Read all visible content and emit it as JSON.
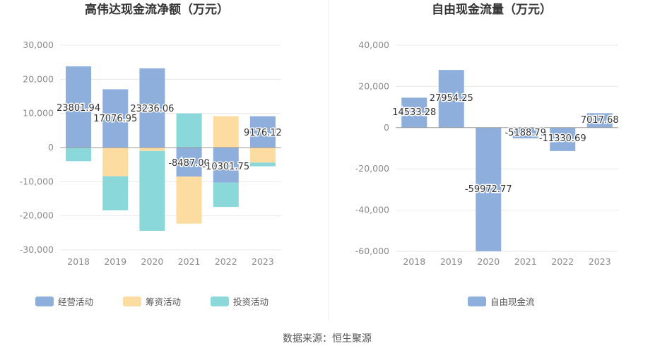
{
  "chart_data": [
    {
      "type": "bar",
      "stacked": true,
      "title": "高伟达现金流净额（万元）",
      "categories": [
        "2018",
        "2019",
        "2020",
        "2021",
        "2022",
        "2023"
      ],
      "ylim": [
        -30000,
        30000
      ],
      "yticks": [
        -30000,
        -20000,
        -10000,
        0,
        10000,
        20000,
        30000
      ],
      "ytick_labels": [
        "-30,000",
        "-20,000",
        "-10,000",
        "0",
        "10,000",
        "20,000",
        "30,000"
      ],
      "grid": true,
      "legend_position": "bottom",
      "series": [
        {
          "name": "经营活动",
          "color": "#8eaedb",
          "values": [
            23801.94,
            17076.95,
            23236.06,
            -8487.0,
            -10301.75,
            9176.12
          ]
        },
        {
          "name": "筹资活动",
          "color": "#fddca2",
          "values": [
            0,
            -8400,
            -1000,
            -13800,
            9200,
            -4400
          ]
        },
        {
          "name": "投资活动",
          "color": "#8ad8da",
          "values": [
            -4000,
            -10000,
            -23400,
            10000,
            -7100,
            -1100
          ]
        }
      ],
      "data_labels": [
        "23801.94",
        "17076.95",
        "23236.06",
        "-8487.00",
        "-10301.75",
        "9176.12"
      ]
    },
    {
      "type": "bar",
      "title": "自由现金流量（万元）",
      "categories": [
        "2018",
        "2019",
        "2020",
        "2021",
        "2022",
        "2023"
      ],
      "ylim": [
        -60000,
        40000
      ],
      "yticks": [
        -60000,
        -40000,
        -20000,
        0,
        20000,
        40000
      ],
      "ytick_labels": [
        "-60,000",
        "-40,000",
        "-20,000",
        "0",
        "20,000",
        "40,000"
      ],
      "grid": true,
      "legend_position": "bottom",
      "series": [
        {
          "name": "自由现金流",
          "color": "#8eaedb",
          "values": [
            14533.28,
            27954.25,
            -59972.77,
            -5188.79,
            -11330.69,
            7017.68
          ]
        }
      ],
      "data_labels": [
        "14533.28",
        "27954.25",
        "-59972.77",
        "-5188.79",
        "-11330.69",
        "7017.68"
      ]
    }
  ],
  "footer": {
    "source": "数据来源：恒生聚源"
  },
  "colors": {
    "axis": "#999999",
    "grid": "#e8e8e8",
    "divider": "#eeeeee",
    "label_stroke": "#ffffff"
  }
}
